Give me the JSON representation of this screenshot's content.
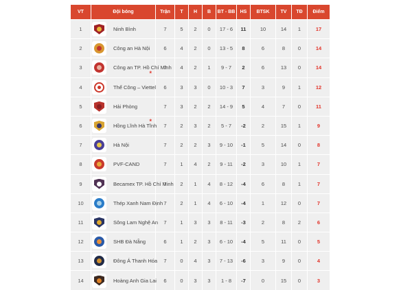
{
  "theme": {
    "header_bg": "#d9472e",
    "row_bg": "#efefef",
    "points_color": "#e2342a",
    "note_color": "#e2342a"
  },
  "table": {
    "columns": [
      "VT",
      "Đội bóng",
      "Trận",
      "T",
      "H",
      "B",
      "BT - BB",
      "HS",
      "BTSK",
      "TV",
      "TĐ",
      "Điểm"
    ],
    "rows": [
      {
        "pos": "1",
        "team": "Ninh Bình",
        "mark": "",
        "logo": {
          "shape": "shield",
          "c1": "#a02225",
          "c2": "#e8b83a"
        },
        "p": "7",
        "w": "5",
        "d": "2",
        "l": "0",
        "gf_ga": "17 - 6",
        "gd": "11",
        "btsk": "10",
        "yc": "14",
        "rc": "1",
        "pts": "17"
      },
      {
        "pos": "2",
        "team": "Công an Hà Nội",
        "mark": "",
        "logo": {
          "shape": "circle",
          "c1": "#d8962f",
          "c2": "#c23430"
        },
        "p": "6",
        "w": "4",
        "d": "2",
        "l": "0",
        "gf_ga": "13 - 5",
        "gd": "8",
        "btsk": "6",
        "yc": "8",
        "rc": "0",
        "pts": "14"
      },
      {
        "pos": "3",
        "team": "Công an TP. Hồ Chí Minh",
        "mark": "below-right",
        "logo": {
          "shape": "circle",
          "c1": "#c23430",
          "c2": "#e8b0a0"
        },
        "p": "7",
        "w": "4",
        "d": "2",
        "l": "1",
        "gf_ga": "9 - 7",
        "gd": "2",
        "btsk": "6",
        "yc": "13",
        "rc": "0",
        "pts": "14"
      },
      {
        "pos": "4",
        "team": "Thể Công – Viettel",
        "mark": "",
        "logo": {
          "shape": "ring",
          "c1": "#cc3629",
          "c2": "#cc3629"
        },
        "p": "6",
        "w": "3",
        "d": "3",
        "l": "0",
        "gf_ga": "10 - 3",
        "gd": "7",
        "btsk": "3",
        "yc": "9",
        "rc": "1",
        "pts": "12"
      },
      {
        "pos": "5",
        "team": "Hải Phòng",
        "mark": "",
        "logo": {
          "shape": "shield",
          "c1": "#b8322c",
          "c2": "#8a1f22"
        },
        "p": "7",
        "w": "3",
        "d": "2",
        "l": "2",
        "gf_ga": "14 - 9",
        "gd": "5",
        "btsk": "4",
        "yc": "7",
        "rc": "0",
        "pts": "11"
      },
      {
        "pos": "6",
        "team": "Hồng Lĩnh Hà Tĩnh",
        "mark": "top-right",
        "logo": {
          "shape": "shield",
          "c1": "#d8a432",
          "c2": "#38356a"
        },
        "p": "7",
        "w": "2",
        "d": "3",
        "l": "2",
        "gf_ga": "5 - 7",
        "gd": "-2",
        "btsk": "2",
        "yc": "15",
        "rc": "1",
        "pts": "9"
      },
      {
        "pos": "7",
        "team": "Hà Nội",
        "mark": "",
        "logo": {
          "shape": "circle",
          "c1": "#4a4096",
          "c2": "#e8c84a"
        },
        "p": "7",
        "w": "2",
        "d": "2",
        "l": "3",
        "gf_ga": "9 - 10",
        "gd": "-1",
        "btsk": "5",
        "yc": "14",
        "rc": "0",
        "pts": "8"
      },
      {
        "pos": "8",
        "team": "PVF-CAND",
        "mark": "",
        "logo": {
          "shape": "circle",
          "c1": "#c93a2c",
          "c2": "#e8a83c"
        },
        "p": "7",
        "w": "1",
        "d": "4",
        "l": "2",
        "gf_ga": "9 - 11",
        "gd": "-2",
        "btsk": "3",
        "yc": "10",
        "rc": "1",
        "pts": "7"
      },
      {
        "pos": "9",
        "team": "Becamex TP. Hồ Chí Minh",
        "mark": "",
        "logo": {
          "shape": "shield",
          "c1": "#503254",
          "c2": "#ffffff"
        },
        "p": "7",
        "w": "2",
        "d": "1",
        "l": "4",
        "gf_ga": "8 - 12",
        "gd": "-4",
        "btsk": "6",
        "yc": "8",
        "rc": "1",
        "pts": "7"
      },
      {
        "pos": "10",
        "team": "Thép Xanh Nam Định",
        "mark": "",
        "logo": {
          "shape": "circle",
          "c1": "#2a7cc8",
          "c2": "#a8d0e8"
        },
        "p": "7",
        "w": "2",
        "d": "1",
        "l": "4",
        "gf_ga": "6 - 10",
        "gd": "-4",
        "btsk": "1",
        "yc": "12",
        "rc": "0",
        "pts": "7"
      },
      {
        "pos": "11",
        "team": "Sông Lam Nghệ An",
        "mark": "",
        "logo": {
          "shape": "shield",
          "c1": "#2a3564",
          "c2": "#e0aa30"
        },
        "p": "7",
        "w": "1",
        "d": "3",
        "l": "3",
        "gf_ga": "8 - 11",
        "gd": "-3",
        "btsk": "2",
        "yc": "8",
        "rc": "2",
        "pts": "6"
      },
      {
        "pos": "12",
        "team": "SHB Đà Nẵng",
        "mark": "",
        "logo": {
          "shape": "circle",
          "c1": "#2a5aa8",
          "c2": "#e8903a"
        },
        "p": "6",
        "w": "1",
        "d": "2",
        "l": "3",
        "gf_ga": "6 - 10",
        "gd": "-4",
        "btsk": "5",
        "yc": "11",
        "rc": "0",
        "pts": "5"
      },
      {
        "pos": "13",
        "team": "Đông Á Thanh Hóa",
        "mark": "",
        "logo": {
          "shape": "circle",
          "c1": "#222c48",
          "c2": "#d09030"
        },
        "p": "7",
        "w": "0",
        "d": "4",
        "l": "3",
        "gf_ga": "7 - 13",
        "gd": "-6",
        "btsk": "3",
        "yc": "9",
        "rc": "0",
        "pts": "4"
      },
      {
        "pos": "14",
        "team": "Hoàng Anh Gia Lai",
        "mark": "",
        "logo": {
          "shape": "shield",
          "c1": "#3c2a22",
          "c2": "#e08228"
        },
        "p": "6",
        "w": "0",
        "d": "3",
        "l": "3",
        "gf_ga": "1 - 8",
        "gd": "-7",
        "btsk": "0",
        "yc": "15",
        "rc": "0",
        "pts": "3"
      }
    ]
  }
}
